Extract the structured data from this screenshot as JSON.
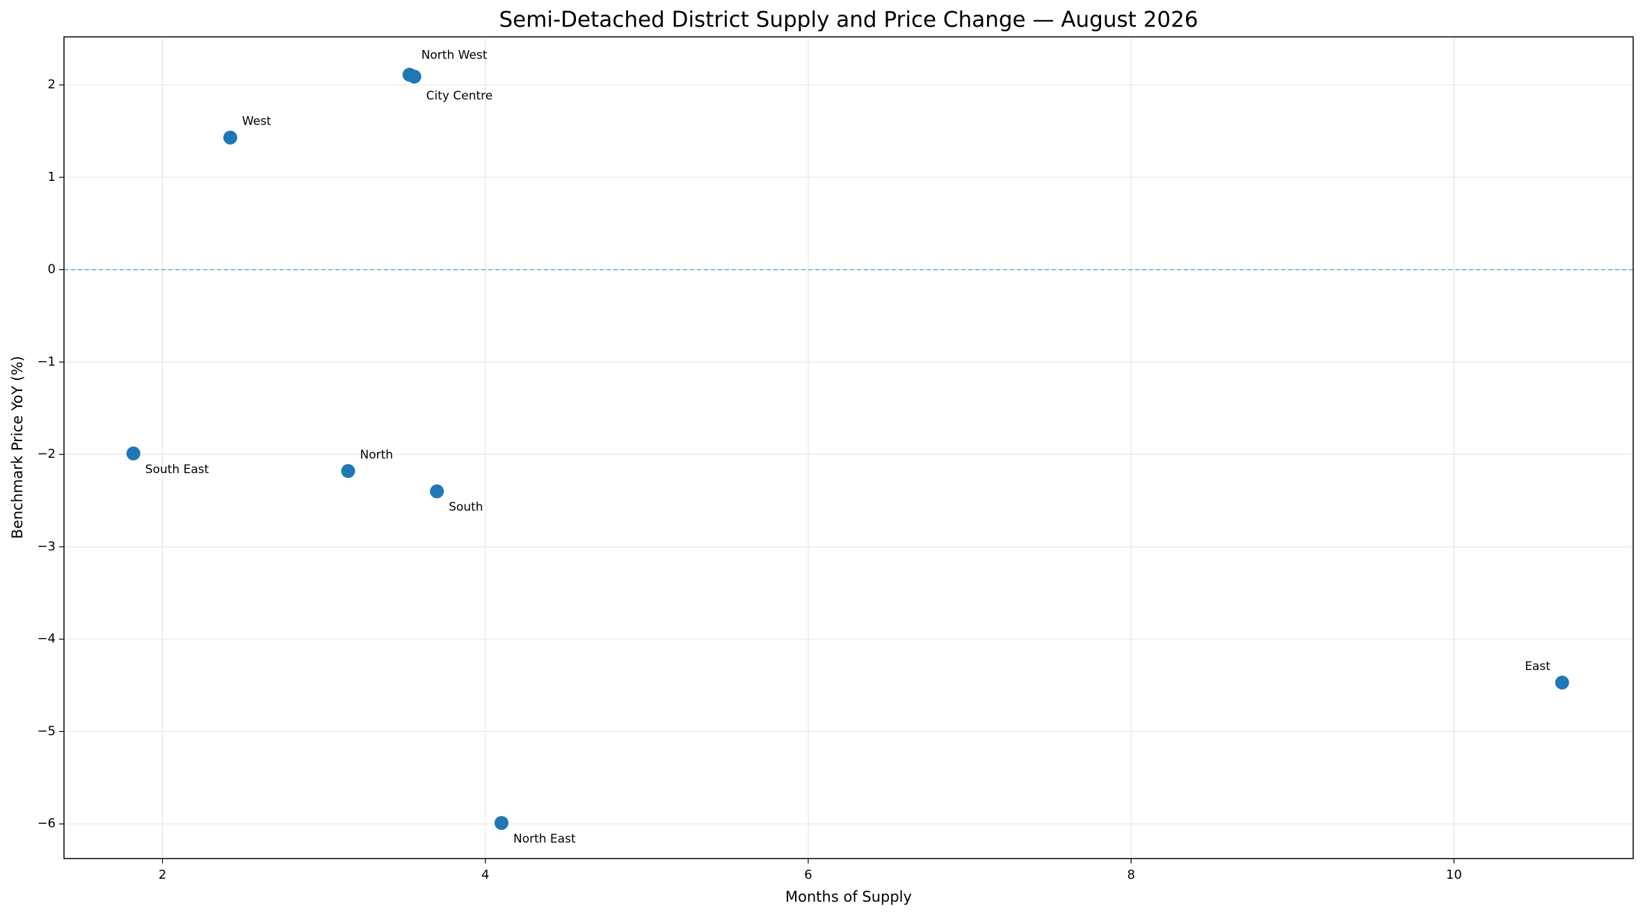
{
  "chart_data": {
    "type": "scatter",
    "title": "Semi-Detached District Supply and Price Change — August 2026",
    "x_label": "Months of Supply",
    "y_label": "Benchmark Price YoY (%)",
    "color": "#1f77b4",
    "grid": true,
    "hline": 0,
    "labels": [
      "North West",
      "City Centre",
      "West",
      "South East",
      "North",
      "South",
      "North East",
      "East"
    ],
    "x": [
      3.53,
      3.56,
      2.42,
      1.82,
      3.15,
      3.7,
      4.1,
      10.67
    ],
    "values": [
      2.11,
      2.09,
      1.43,
      -1.99,
      -2.18,
      -2.4,
      -5.99,
      -4.47
    ],
    "xlim": [
      1.39,
      11.11
    ],
    "ylim": [
      -6.375,
      2.52
    ],
    "xticks": [
      2,
      4,
      6,
      8,
      10
    ],
    "yticks": [
      {
        "value": -6,
        "label": "−6"
      },
      {
        "value": -5,
        "label": "−5"
      },
      {
        "value": -4,
        "label": "−4"
      },
      {
        "value": -3,
        "label": "−3"
      },
      {
        "value": -2,
        "label": "−2"
      },
      {
        "value": -1,
        "label": "−1"
      },
      0,
      1,
      2
    ]
  }
}
